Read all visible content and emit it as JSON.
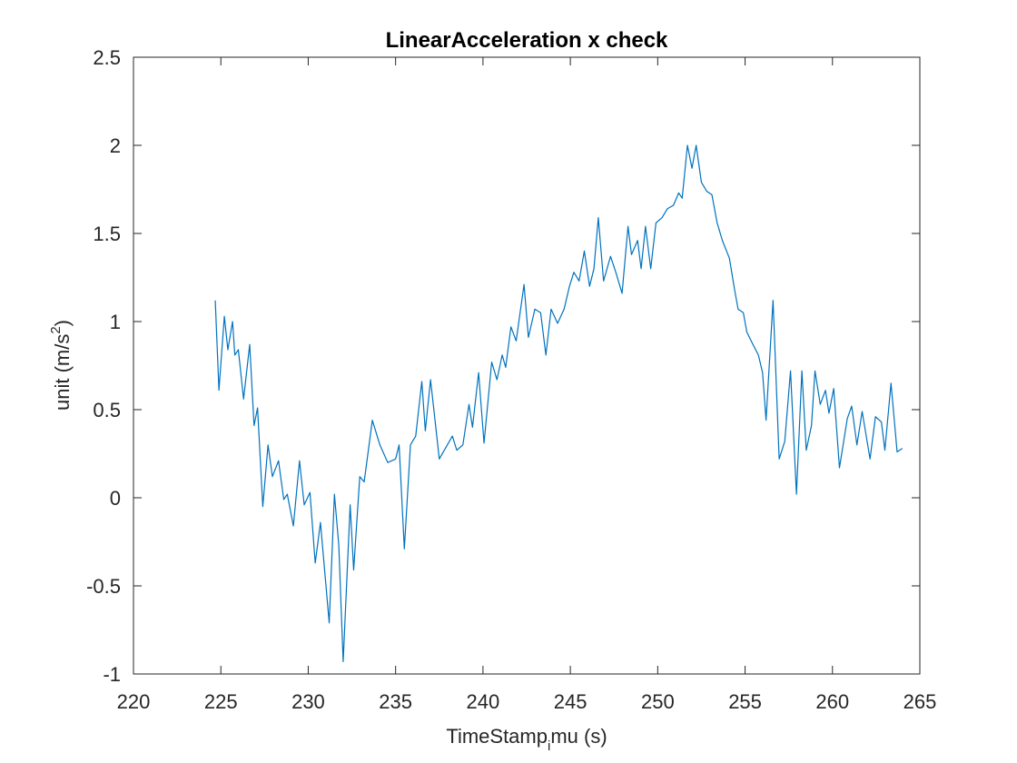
{
  "chart_data": {
    "type": "line",
    "title": "LinearAcceleration x check",
    "xlabel": [
      "TimeStamp",
      "i",
      "mu (s)"
    ],
    "ylabel": [
      "unit (m/s",
      "2",
      ")"
    ],
    "xlim": [
      220,
      265
    ],
    "xticks": [
      220,
      225,
      230,
      235,
      240,
      245,
      250,
      255,
      260,
      265
    ],
    "ylim": [
      -1,
      2.5
    ],
    "yticks": [
      -1,
      -0.5,
      0,
      0.5,
      1,
      1.5,
      2,
      2.5
    ],
    "grid": false,
    "series": [
      {
        "color": "#0072BD",
        "x": [
          224.68,
          224.89,
          225.2,
          225.4,
          225.67,
          225.8,
          226.0,
          226.3,
          226.65,
          226.9,
          227.1,
          227.4,
          227.7,
          227.95,
          228.3,
          228.6,
          228.8,
          229.15,
          229.5,
          229.77,
          230.1,
          230.4,
          230.7,
          231.2,
          231.5,
          231.75,
          232.0,
          232.4,
          232.6,
          232.95,
          233.2,
          233.67,
          234.1,
          234.55,
          235.0,
          235.2,
          235.5,
          235.85,
          236.15,
          236.5,
          236.7,
          237.0,
          237.5,
          238.25,
          238.5,
          238.85,
          239.2,
          239.4,
          239.75,
          240.06,
          240.5,
          240.8,
          241.1,
          241.3,
          241.6,
          241.9,
          242.35,
          242.6,
          242.97,
          243.3,
          243.6,
          243.9,
          244.27,
          244.64,
          244.95,
          245.2,
          245.5,
          245.8,
          246.1,
          246.35,
          246.6,
          246.9,
          247.3,
          247.6,
          247.96,
          248.3,
          248.5,
          248.85,
          249.05,
          249.3,
          249.6,
          249.9,
          250.25,
          250.55,
          250.9,
          251.2,
          251.4,
          251.7,
          251.96,
          252.2,
          252.5,
          252.8,
          253.1,
          253.4,
          253.7,
          254.1,
          254.4,
          254.6,
          254.9,
          255.1,
          255.45,
          255.76,
          256.0,
          256.2,
          256.6,
          256.95,
          257.27,
          257.6,
          257.94,
          258.25,
          258.5,
          258.8,
          259.0,
          259.3,
          259.6,
          259.8,
          260.07,
          260.4,
          260.85,
          261.1,
          261.4,
          261.7,
          262.15,
          262.46,
          262.8,
          263.0,
          263.35,
          263.7,
          264.0
        ],
        "values": [
          1.12,
          0.61,
          1.03,
          0.84,
          1.0,
          0.81,
          0.84,
          0.56,
          0.87,
          0.41,
          0.51,
          -0.05,
          0.3,
          0.12,
          0.21,
          -0.01,
          0.02,
          -0.16,
          0.21,
          -0.04,
          0.03,
          -0.37,
          -0.14,
          -0.71,
          0.02,
          -0.27,
          -0.93,
          -0.04,
          -0.41,
          0.12,
          0.09,
          0.44,
          0.3,
          0.2,
          0.22,
          0.3,
          -0.29,
          0.3,
          0.35,
          0.66,
          0.38,
          0.67,
          0.22,
          0.35,
          0.27,
          0.3,
          0.53,
          0.4,
          0.71,
          0.31,
          0.77,
          0.67,
          0.81,
          0.74,
          0.97,
          0.89,
          1.21,
          0.91,
          1.07,
          1.05,
          0.81,
          1.07,
          0.99,
          1.07,
          1.2,
          1.28,
          1.23,
          1.4,
          1.2,
          1.3,
          1.59,
          1.23,
          1.37,
          1.28,
          1.16,
          1.54,
          1.38,
          1.46,
          1.3,
          1.54,
          1.3,
          1.56,
          1.59,
          1.64,
          1.66,
          1.73,
          1.7,
          2.0,
          1.87,
          2.0,
          1.79,
          1.74,
          1.72,
          1.56,
          1.46,
          1.36,
          1.18,
          1.07,
          1.05,
          0.94,
          0.87,
          0.81,
          0.71,
          0.44,
          1.12,
          0.22,
          0.32,
          0.72,
          0.02,
          0.72,
          0.27,
          0.41,
          0.72,
          0.53,
          0.61,
          0.48,
          0.62,
          0.17,
          0.45,
          0.52,
          0.3,
          0.49,
          0.22,
          0.46,
          0.43,
          0.27,
          0.65,
          0.26,
          0.28
        ]
      }
    ]
  }
}
